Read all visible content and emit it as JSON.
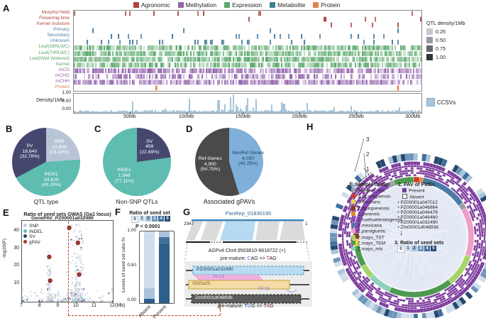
{
  "ui": {
    "panel_labels": {
      "A": "A",
      "B": "B",
      "C": "C",
      "D": "D",
      "E": "E",
      "F": "F",
      "G": "G",
      "H": "H"
    },
    "panelG": {
      "title": "PanRep_01830195",
      "scale_left": "2947",
      "scale_right": "1",
      "coords": "AGPv4 Chr4:9503810-9618722 (+)",
      "premature_top": {
        "pre": "pre-mature: ",
        "hl1": "C",
        "mid": "AG => ",
        "hl2": "T",
        "post": "AG"
      },
      "gene_top": "PZ00001a032490",
      "len1": "96 bp",
      "gene_mid": "SDGa25",
      "len2": "88 bp",
      "gene_bottom": "Zm00001d048936",
      "premature_bottom": {
        "pre": "pre-mature: T",
        "hl1": "G",
        "mid": "G => T",
        "hl2": "A",
        "post": "G"
      }
    },
    "panelH": {
      "legend1_title": "1. Sample Group",
      "legend2_title": "2. PAV of PMEs",
      "legend3_title": "3. Ratio of seed sets",
      "present": "Present",
      "absent": "Absent",
      "callouts": [
        "1",
        "2",
        "3"
      ]
    }
  },
  "chart_data": [
    {
      "id": "qtl-density-heatmap",
      "type": "heatmap",
      "x_range_mb": [
        0,
        307
      ],
      "xticks": [
        "50Mb",
        "100Mb",
        "150Mb",
        "200Mb",
        "250Mb",
        "300Mb"
      ],
      "category_legend": [
        {
          "label": "Agronomic",
          "color": "#b0433c"
        },
        {
          "label": "Methylation",
          "color": "#9264ae"
        },
        {
          "label": "Expression",
          "color": "#5aa86c"
        },
        {
          "label": "Metabolite",
          "color": "#3f7f93"
        },
        {
          "label": "Protein",
          "color": "#e2854f"
        }
      ],
      "rows": [
        {
          "label": "Morphic/Yeild",
          "group": "Agronomic",
          "color": "#b0433c",
          "density": 0.05
        },
        {
          "label": "Flowering time",
          "group": "Agronomic",
          "color": "#b0433c",
          "density": 0.025
        },
        {
          "label": "Kernel moisture",
          "group": "Agronomic",
          "color": "#b0433c",
          "density": 0.02
        },
        {
          "label": "Primary",
          "group": "Metabolite",
          "color": "#4d7fa3",
          "density": 0.03
        },
        {
          "label": "Secondary",
          "group": "Metabolite",
          "color": "#4d7fa3",
          "density": 0.07
        },
        {
          "label": "Unknown",
          "group": "Metabolite",
          "color": "#4d7fa3",
          "density": 0.13
        },
        {
          "label": "Leaf(58RLWC)",
          "group": "Expression",
          "color": "#5aa86c",
          "density": 0.82
        },
        {
          "label": "Leaf(70RLWC)",
          "group": "Expression",
          "color": "#5aa86c",
          "density": 0.85
        },
        {
          "label": "Leaf(Well Watered)",
          "group": "Expression",
          "color": "#5aa86c",
          "density": 0.85
        },
        {
          "label": "Kernel",
          "group": "Expression",
          "color": "#5aa86c",
          "density": 0.72
        },
        {
          "label": "mCG",
          "group": "Methylation",
          "color": "#9264ae",
          "density": 0.78
        },
        {
          "label": "mCHG",
          "group": "Methylation",
          "color": "#9264ae",
          "density": 0.55
        },
        {
          "label": "mCHH",
          "group": "Methylation",
          "color": "#9264ae",
          "density": 0.82
        },
        {
          "label": "Protein",
          "group": "Protein",
          "color": "#e2854f",
          "density": 0.004,
          "ticks": [
            0.235,
            0.93
          ]
        }
      ],
      "density_scale": {
        "title": "QTL density/1Mb",
        "items": [
          {
            "label": "0.25",
            "color": "#c5c9ce"
          },
          {
            "label": "0.50",
            "color": "#969ca3"
          },
          {
            "label": "0.75",
            "color": "#63696f"
          },
          {
            "label": "1.00",
            "color": "#303438"
          }
        ]
      }
    },
    {
      "id": "ccsv-density-track",
      "type": "area",
      "ylabel": "Density/1Mb",
      "yticks": [
        "1.00",
        "0.50",
        "0.00"
      ],
      "legend": [
        {
          "label": "CCSVs",
          "color": "#a5c5da"
        }
      ],
      "x_range_mb": [
        0,
        307
      ]
    },
    {
      "id": "qtl-type-pie",
      "type": "pie",
      "caption": "QTL type",
      "slices": [
        {
          "name": "SNP",
          "value": 13608,
          "value_display": "13,608",
          "pct": "23.93%",
          "frac": 0.2393,
          "color": "#b9c5d7",
          "text": "#ffffff"
        },
        {
          "name": "INDEL",
          "value": 24618,
          "value_display": "24,618",
          "pct": "43.29%",
          "frac": 0.4329,
          "color": "#5fbcb1",
          "text": "#ffffff"
        },
        {
          "name": "SV",
          "value": 18640,
          "value_display": "18,640",
          "pct": "32.78%",
          "frac": 0.3278,
          "color": "#45476e",
          "text": "#ffffff"
        }
      ]
    },
    {
      "id": "non-snp-qtl-pie",
      "type": "pie",
      "caption": "Non-SNP QTLs",
      "slices": [
        {
          "name": "SV",
          "value": 459,
          "value_display": "459",
          "pct": "22.89%",
          "frac": 0.2289,
          "color": "#45476e",
          "text": "#ffffff"
        },
        {
          "name": "INDEL",
          "value": 1546,
          "value_display": "1,546",
          "pct": "77.11%",
          "frac": 0.7711,
          "color": "#5fbcb1",
          "text": "#ffffff"
        }
      ]
    },
    {
      "id": "associated-gpav-pie",
      "type": "pie",
      "caption": "Associated gPAVs",
      "slices": [
        {
          "name": "NonRef Genes",
          "value": 4050,
          "value_display": "4,050",
          "pct": "45.25%",
          "frac": 0.4525,
          "color": "#7fb0da",
          "text": "#1f3b5c"
        },
        {
          "name": "Ref-Genes",
          "value": 4900,
          "value_display": "4,900",
          "pct": "54.75%",
          "frac": 0.5475,
          "color": "#4a4a4a",
          "text": "#ffffff"
        }
      ]
    },
    {
      "id": "gwas-manhattan",
      "type": "scatter",
      "title": "Ratio of seed sets GWAS (Ga1 locus)",
      "ylabel": "-log10(P)",
      "xlabel": "(Mb)",
      "xlim": [
        7,
        12
      ],
      "ylim": [
        0,
        46
      ],
      "xticks": [
        7,
        8,
        9,
        10,
        11,
        12
      ],
      "yticks": [
        10,
        20,
        30,
        40
      ],
      "legend": [
        {
          "label": "SNP",
          "color": "#c5cedb"
        },
        {
          "label": "INDEL",
          "color": "#52c4b8"
        },
        {
          "label": "SV",
          "color": "#313a5e"
        },
        {
          "label": "gPAV",
          "color": "#a83430"
        }
      ],
      "annotation": {
        "label": "GenePAV_PZ00001a032490",
        "x": 9.6
      },
      "gpav_points": [
        {
          "x": 8.5,
          "y": 25.5
        },
        {
          "x": 8.55,
          "y": 12
        },
        {
          "x": 9.6,
          "y": 42
        },
        {
          "x": 10.08,
          "y": 33.5
        },
        {
          "x": 10.15,
          "y": 15.5
        }
      ],
      "clusters": [
        {
          "center": 8.5,
          "spread": 0.12,
          "n": 70,
          "ymax": 28
        },
        {
          "center": 10.05,
          "spread": 0.45,
          "n": 210,
          "ymax": 45
        },
        {
          "center": 9.5,
          "spread": 2.6,
          "n": 140,
          "ymax": 7
        }
      ]
    },
    {
      "id": "seed-set-stacked-bar",
      "type": "bar",
      "stacked": true,
      "title": "Ratio of seed set",
      "pvalue": "P < 0.0001",
      "ylabel": "Levels of seed set ratio %",
      "yticks": [
        "1.00",
        "0.50",
        "0.00"
      ],
      "categories": [
        "Absent",
        "Present"
      ],
      "levels": [
        "0",
        "1",
        "2",
        "3",
        "4",
        "5"
      ],
      "level_colors": [
        "#f2f5f9",
        "#cfdded",
        "#a9c3da",
        "#6d94b8",
        "#3f6f9d",
        "#27496e"
      ],
      "series": [
        {
          "category": "Absent",
          "segments": [
            {
              "color": "#2d5e8c",
              "frac": 0.06
            },
            {
              "color": "#a9c3da",
              "frac": 0.15
            },
            {
              "color": "#cfdded",
              "frac": 0.79
            }
          ]
        },
        {
          "category": "Present",
          "segments": [
            {
              "color": "#2d5e8c",
              "frac": 0.82
            },
            {
              "color": "#41729e",
              "frac": 0.1
            },
            {
              "color": "#a9c3da",
              "frac": 0.08
            }
          ]
        }
      ]
    },
    {
      "id": "pav-pme-circos",
      "type": "heatmap",
      "description": "Circular sample phylogeny with ring 1 sample group, ring 2 PAV of PMEs (6 genes), ring 3 ratio of seed sets",
      "sample_groups": [
        {
          "label": "Teosinte_mix",
          "color": "#9aa0a6"
        },
        {
          "label": "Z.nicaraguensis",
          "color": "#cf3a2a"
        },
        {
          "label": "Z.luxurians",
          "color": "#e6d34f"
        },
        {
          "label": "Z.diploperennis",
          "color": "#8a3a24"
        },
        {
          "label": "Z.perennis",
          "color": "#e8852c"
        },
        {
          "label": "Z.huehuetenangensis",
          "color": "#8b4bb8"
        },
        {
          "label": "Z.mexicana",
          "color": "#4a7ba6"
        },
        {
          "label": "Z.parviglumis",
          "color": "#ef9ec4"
        },
        {
          "label": "Z.mays_TST",
          "color": "#a6d46a"
        },
        {
          "label": "Z.mays_TEM",
          "color": "#4d9a50"
        },
        {
          "label": "Z.mays_mix",
          "color": "#8fd0bd"
        }
      ],
      "pav_colors": {
        "present": "#7d3c9e",
        "absent": "#ffffff"
      },
      "genes": [
        "PZ00001a047012",
        "PZ00001a046864",
        "PZ00001a046478",
        "PZ00001a046460",
        "PZ00001a032490",
        "Zm00001d048936"
      ],
      "ratio_levels": [
        "0",
        "1",
        "2",
        "3",
        "4",
        "5"
      ],
      "ratio_palette": [
        "#ffffff",
        "#cfdded",
        "#a9c3da",
        "#6d94b8",
        "#3f6f9d",
        "#27496e"
      ],
      "sample_segments": [
        [
          1,
          5
        ],
        [
          4,
          3
        ],
        [
          6,
          40
        ],
        [
          0,
          5
        ],
        [
          7,
          42
        ],
        [
          8,
          28
        ],
        [
          9,
          55
        ],
        [
          10,
          20
        ],
        [
          8,
          12
        ],
        [
          9,
          18
        ],
        [
          2,
          6
        ],
        [
          3,
          5
        ],
        [
          5,
          52
        ],
        [
          0,
          6
        ],
        [
          9,
          17
        ]
      ]
    }
  ]
}
